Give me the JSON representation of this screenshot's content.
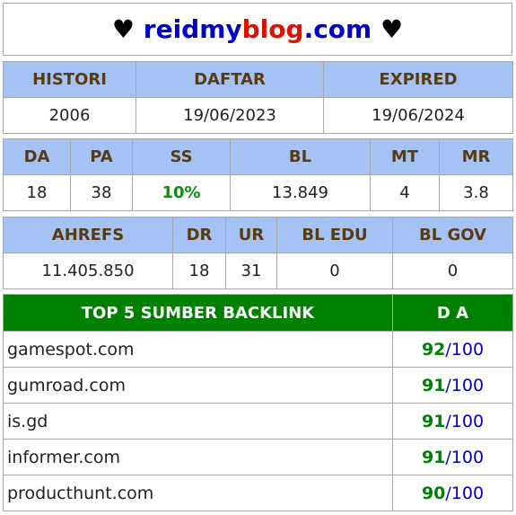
{
  "title": {
    "heart_left": "♥",
    "part1": "reidmy",
    "part2": "blog",
    "part3": ".com",
    "heart_right": "♥"
  },
  "history": {
    "headers": [
      "HISTORI",
      "DAFTAR",
      "EXPIRED"
    ],
    "values": [
      "2006",
      "19/06/2023",
      "19/06/2024"
    ]
  },
  "stats": {
    "headers": [
      "DA",
      "PA",
      "SS",
      "BL",
      "MT",
      "MR"
    ],
    "values": [
      "18",
      "38",
      "10%",
      "13.849",
      "4",
      "3.8"
    ]
  },
  "ahrefs": {
    "headers": [
      "AHREFS",
      "DR",
      "UR",
      "BL EDU",
      "BL GOV"
    ],
    "values": [
      "11.405.850",
      "18",
      "31",
      "0",
      "0"
    ]
  },
  "top_backlinks": {
    "header_source": "TOP 5 SUMBER BACKLINK",
    "header_da": "D A",
    "rows": [
      {
        "site": "gamespot.com",
        "da": "92",
        "sep": "/",
        "max": "100"
      },
      {
        "site": "gumroad.com",
        "da": "91",
        "sep": "/",
        "max": "100"
      },
      {
        "site": "is.gd",
        "da": "91",
        "sep": "/",
        "max": "100"
      },
      {
        "site": "informer.com",
        "da": "91",
        "sep": "/",
        "max": "100"
      },
      {
        "site": "producthunt.com",
        "da": "90",
        "sep": "/",
        "max": "100"
      }
    ]
  },
  "colors": {
    "header_bg": "#a4c2f4",
    "top_header_bg": "#008000",
    "brand_blue": "#0000cc",
    "brand_red": "#dd1100",
    "positive_green": "#008000"
  }
}
